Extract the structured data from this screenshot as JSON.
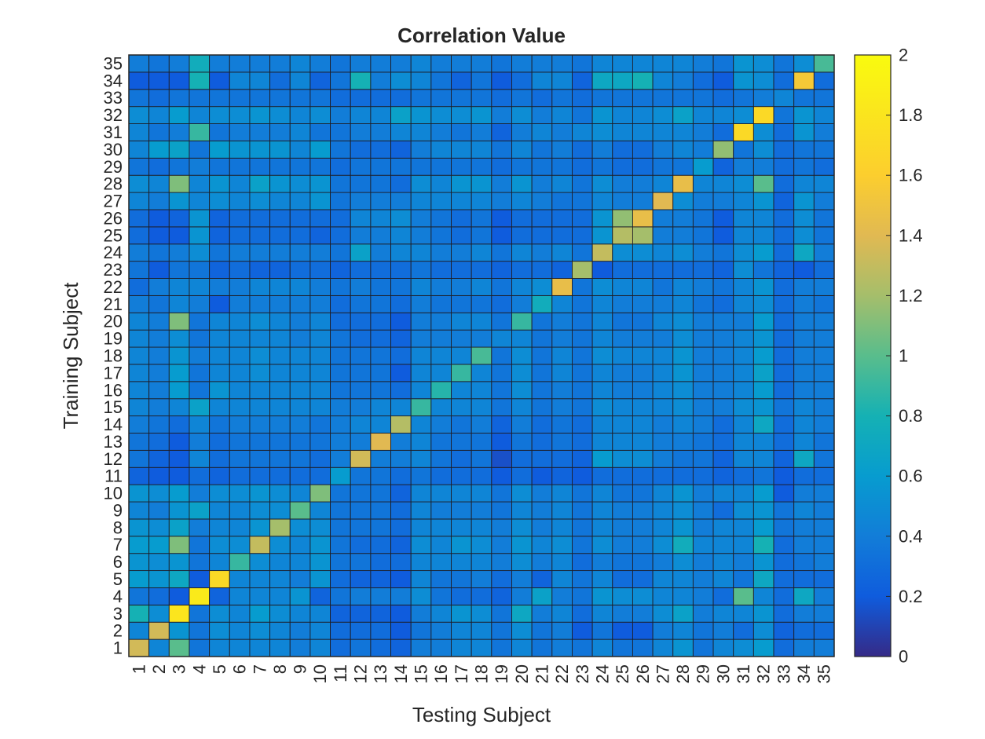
{
  "chart_data": {
    "type": "heatmap",
    "title": "Correlation Value",
    "xlabel": "Testing Subject",
    "ylabel": "Training Subject",
    "x_categories": [
      "1",
      "2",
      "3",
      "4",
      "5",
      "6",
      "7",
      "8",
      "9",
      "10",
      "11",
      "12",
      "13",
      "14",
      "15",
      "16",
      "17",
      "18",
      "19",
      "20",
      "21",
      "22",
      "23",
      "24",
      "25",
      "26",
      "27",
      "28",
      "29",
      "30",
      "31",
      "32",
      "33",
      "34",
      "35"
    ],
    "y_categories": [
      "1",
      "2",
      "3",
      "4",
      "5",
      "6",
      "7",
      "8",
      "9",
      "10",
      "11",
      "12",
      "13",
      "14",
      "15",
      "16",
      "17",
      "18",
      "19",
      "20",
      "21",
      "22",
      "23",
      "24",
      "25",
      "26",
      "27",
      "28",
      "29",
      "30",
      "31",
      "32",
      "33",
      "34",
      "35"
    ],
    "colorbar": {
      "min": 0,
      "max": 2,
      "ticks": [
        "0",
        "0.2",
        "0.4",
        "0.6",
        "0.8",
        "1",
        "1.2",
        "1.4",
        "1.6",
        "1.8",
        "2"
      ],
      "colormap": "parula"
    },
    "diagonal": [
      1.35,
      1.35,
      1.8,
      1.85,
      1.7,
      0.9,
      1.3,
      1.2,
      1.0,
      1.1,
      0.6,
      1.35,
      1.4,
      1.25,
      0.9,
      0.85,
      0.9,
      0.95,
      0.45,
      0.9,
      0.75,
      1.45,
      1.2,
      1.3,
      1.25,
      1.45,
      1.4,
      1.45,
      0.6,
      1.15,
      1.7,
      1.7,
      0.45,
      1.55,
      0.95
    ],
    "values": [
      [
        1.35,
        0.45,
        1.0,
        0.35,
        0.45,
        0.45,
        0.45,
        0.45,
        0.4,
        0.45,
        0.3,
        0.35,
        0.3,
        0.25,
        0.4,
        0.4,
        0.45,
        0.45,
        0.35,
        0.45,
        0.35,
        0.4,
        0.35,
        0.45,
        0.35,
        0.35,
        0.45,
        0.55,
        0.35,
        0.45,
        0.5,
        0.6,
        0.3,
        0.4,
        0.4
      ],
      [
        0.45,
        1.35,
        0.55,
        0.35,
        0.5,
        0.45,
        0.5,
        0.45,
        0.4,
        0.45,
        0.3,
        0.3,
        0.3,
        0.2,
        0.35,
        0.4,
        0.45,
        0.45,
        0.35,
        0.5,
        0.35,
        0.4,
        0.2,
        0.35,
        0.2,
        0.2,
        0.4,
        0.45,
        0.35,
        0.4,
        0.3,
        0.5,
        0.25,
        0.3,
        0.3
      ],
      [
        0.8,
        0.5,
        1.8,
        0.35,
        0.5,
        0.45,
        0.6,
        0.5,
        0.45,
        0.45,
        0.25,
        0.25,
        0.25,
        0.2,
        0.4,
        0.45,
        0.55,
        0.5,
        0.35,
        0.7,
        0.4,
        0.45,
        0.3,
        0.45,
        0.4,
        0.4,
        0.5,
        0.65,
        0.4,
        0.45,
        0.45,
        0.55,
        0.3,
        0.4,
        0.4
      ],
      [
        0.35,
        0.3,
        0.2,
        1.85,
        0.25,
        0.45,
        0.45,
        0.45,
        0.55,
        0.25,
        0.35,
        0.4,
        0.4,
        0.4,
        0.5,
        0.35,
        0.3,
        0.3,
        0.25,
        0.4,
        0.65,
        0.4,
        0.35,
        0.55,
        0.5,
        0.5,
        0.45,
        0.45,
        0.4,
        0.3,
        1.0,
        0.45,
        0.3,
        0.7,
        0.4
      ],
      [
        0.6,
        0.55,
        0.7,
        0.2,
        1.7,
        0.45,
        0.45,
        0.45,
        0.4,
        0.55,
        0.3,
        0.25,
        0.25,
        0.2,
        0.45,
        0.35,
        0.35,
        0.4,
        0.3,
        0.4,
        0.25,
        0.45,
        0.35,
        0.45,
        0.3,
        0.3,
        0.45,
        0.45,
        0.4,
        0.45,
        0.35,
        0.7,
        0.3,
        0.3,
        0.3
      ],
      [
        0.55,
        0.5,
        0.55,
        0.35,
        0.45,
        0.9,
        0.5,
        0.45,
        0.45,
        0.55,
        0.35,
        0.35,
        0.3,
        0.3,
        0.45,
        0.45,
        0.45,
        0.45,
        0.4,
        0.5,
        0.4,
        0.45,
        0.3,
        0.4,
        0.35,
        0.35,
        0.4,
        0.5,
        0.4,
        0.45,
        0.4,
        0.55,
        0.3,
        0.35,
        0.4
      ],
      [
        0.6,
        0.6,
        1.1,
        0.35,
        0.5,
        0.5,
        1.3,
        0.5,
        0.45,
        0.55,
        0.35,
        0.3,
        0.3,
        0.25,
        0.5,
        0.45,
        0.55,
        0.5,
        0.4,
        0.55,
        0.45,
        0.5,
        0.35,
        0.5,
        0.4,
        0.4,
        0.5,
        0.75,
        0.45,
        0.45,
        0.45,
        0.8,
        0.3,
        0.4,
        0.4
      ],
      [
        0.55,
        0.5,
        0.65,
        0.4,
        0.45,
        0.45,
        0.55,
        1.2,
        0.5,
        0.5,
        0.35,
        0.35,
        0.35,
        0.3,
        0.45,
        0.45,
        0.45,
        0.45,
        0.4,
        0.5,
        0.4,
        0.45,
        0.35,
        0.45,
        0.4,
        0.4,
        0.45,
        0.55,
        0.4,
        0.45,
        0.45,
        0.6,
        0.35,
        0.4,
        0.4
      ],
      [
        0.45,
        0.4,
        0.55,
        0.65,
        0.45,
        0.45,
        0.5,
        0.5,
        1.0,
        0.45,
        0.35,
        0.35,
        0.35,
        0.3,
        0.45,
        0.4,
        0.4,
        0.4,
        0.35,
        0.45,
        0.4,
        0.45,
        0.35,
        0.45,
        0.4,
        0.4,
        0.45,
        0.5,
        0.4,
        0.3,
        0.5,
        0.55,
        0.35,
        0.45,
        0.4
      ],
      [
        0.55,
        0.5,
        0.6,
        0.4,
        0.5,
        0.5,
        0.55,
        0.5,
        0.45,
        1.1,
        0.35,
        0.35,
        0.35,
        0.25,
        0.45,
        0.45,
        0.45,
        0.45,
        0.35,
        0.5,
        0.4,
        0.45,
        0.35,
        0.45,
        0.35,
        0.35,
        0.45,
        0.55,
        0.4,
        0.45,
        0.45,
        0.6,
        0.2,
        0.4,
        0.4
      ],
      [
        0.25,
        0.2,
        0.2,
        0.3,
        0.25,
        0.3,
        0.3,
        0.3,
        0.3,
        0.3,
        0.6,
        0.35,
        0.35,
        0.3,
        0.35,
        0.3,
        0.3,
        0.3,
        0.2,
        0.3,
        0.2,
        0.25,
        0.2,
        0.3,
        0.3,
        0.3,
        0.3,
        0.3,
        0.3,
        0.25,
        0.3,
        0.35,
        0.2,
        0.3,
        0.3
      ],
      [
        0.35,
        0.25,
        0.2,
        0.45,
        0.3,
        0.35,
        0.35,
        0.35,
        0.35,
        0.3,
        0.4,
        1.35,
        0.4,
        0.4,
        0.45,
        0.35,
        0.3,
        0.35,
        0.15,
        0.3,
        0.3,
        0.3,
        0.25,
        0.6,
        0.5,
        0.5,
        0.4,
        0.35,
        0.35,
        0.25,
        0.45,
        0.45,
        0.25,
        0.7,
        0.35
      ],
      [
        0.35,
        0.3,
        0.2,
        0.4,
        0.3,
        0.35,
        0.35,
        0.35,
        0.35,
        0.35,
        0.4,
        0.4,
        1.4,
        0.4,
        0.45,
        0.35,
        0.35,
        0.35,
        0.2,
        0.35,
        0.3,
        0.35,
        0.3,
        0.45,
        0.45,
        0.45,
        0.4,
        0.4,
        0.35,
        0.3,
        0.45,
        0.45,
        0.3,
        0.45,
        0.35
      ],
      [
        0.4,
        0.35,
        0.3,
        0.45,
        0.35,
        0.4,
        0.4,
        0.4,
        0.4,
        0.35,
        0.4,
        0.45,
        0.45,
        1.25,
        0.45,
        0.4,
        0.35,
        0.4,
        0.25,
        0.4,
        0.3,
        0.35,
        0.3,
        0.45,
        0.45,
        0.45,
        0.4,
        0.45,
        0.4,
        0.3,
        0.45,
        0.7,
        0.3,
        0.45,
        0.4
      ],
      [
        0.45,
        0.4,
        0.45,
        0.65,
        0.45,
        0.45,
        0.45,
        0.45,
        0.45,
        0.45,
        0.4,
        0.4,
        0.45,
        0.45,
        0.9,
        0.45,
        0.45,
        0.45,
        0.35,
        0.45,
        0.35,
        0.4,
        0.35,
        0.5,
        0.45,
        0.45,
        0.45,
        0.5,
        0.4,
        0.4,
        0.5,
        0.55,
        0.35,
        0.45,
        0.4
      ],
      [
        0.45,
        0.4,
        0.6,
        0.35,
        0.55,
        0.45,
        0.45,
        0.45,
        0.45,
        0.45,
        0.35,
        0.35,
        0.35,
        0.3,
        0.45,
        0.85,
        0.45,
        0.45,
        0.35,
        0.5,
        0.35,
        0.4,
        0.35,
        0.45,
        0.4,
        0.4,
        0.45,
        0.5,
        0.4,
        0.4,
        0.45,
        0.6,
        0.3,
        0.4,
        0.4
      ],
      [
        0.45,
        0.4,
        0.6,
        0.35,
        0.45,
        0.45,
        0.5,
        0.45,
        0.45,
        0.45,
        0.35,
        0.35,
        0.35,
        0.2,
        0.45,
        0.45,
        0.9,
        0.45,
        0.35,
        0.5,
        0.35,
        0.45,
        0.35,
        0.45,
        0.4,
        0.4,
        0.45,
        0.55,
        0.4,
        0.4,
        0.45,
        0.65,
        0.3,
        0.4,
        0.4
      ],
      [
        0.45,
        0.4,
        0.55,
        0.4,
        0.45,
        0.45,
        0.5,
        0.45,
        0.45,
        0.45,
        0.35,
        0.35,
        0.35,
        0.3,
        0.45,
        0.45,
        0.45,
        0.95,
        0.35,
        0.5,
        0.35,
        0.45,
        0.35,
        0.5,
        0.45,
        0.45,
        0.45,
        0.55,
        0.4,
        0.4,
        0.45,
        0.6,
        0.3,
        0.4,
        0.4
      ],
      [
        0.45,
        0.4,
        0.5,
        0.35,
        0.45,
        0.45,
        0.45,
        0.45,
        0.4,
        0.45,
        0.35,
        0.3,
        0.3,
        0.25,
        0.4,
        0.4,
        0.4,
        0.4,
        0.45,
        0.45,
        0.35,
        0.4,
        0.35,
        0.45,
        0.4,
        0.4,
        0.4,
        0.5,
        0.4,
        0.4,
        0.45,
        0.55,
        0.3,
        0.4,
        0.4
      ],
      [
        0.45,
        0.4,
        1.1,
        0.35,
        0.45,
        0.45,
        0.5,
        0.45,
        0.4,
        0.45,
        0.3,
        0.3,
        0.3,
        0.2,
        0.4,
        0.4,
        0.45,
        0.45,
        0.35,
        0.9,
        0.35,
        0.4,
        0.35,
        0.45,
        0.35,
        0.35,
        0.45,
        0.5,
        0.4,
        0.4,
        0.4,
        0.6,
        0.3,
        0.4,
        0.4
      ],
      [
        0.4,
        0.35,
        0.45,
        0.4,
        0.2,
        0.4,
        0.4,
        0.4,
        0.4,
        0.4,
        0.3,
        0.35,
        0.35,
        0.3,
        0.4,
        0.35,
        0.35,
        0.35,
        0.3,
        0.4,
        0.75,
        0.45,
        0.35,
        0.45,
        0.4,
        0.4,
        0.4,
        0.45,
        0.35,
        0.3,
        0.45,
        0.5,
        0.3,
        0.4,
        0.35
      ],
      [
        0.3,
        0.4,
        0.45,
        0.45,
        0.4,
        0.4,
        0.45,
        0.45,
        0.45,
        0.4,
        0.35,
        0.4,
        0.35,
        0.35,
        0.45,
        0.4,
        0.4,
        0.45,
        0.35,
        0.45,
        0.5,
        1.45,
        0.35,
        0.5,
        0.45,
        0.45,
        0.35,
        0.45,
        0.4,
        0.35,
        0.45,
        0.55,
        0.3,
        0.4,
        0.4
      ],
      [
        0.35,
        0.2,
        0.35,
        0.35,
        0.25,
        0.3,
        0.25,
        0.25,
        0.3,
        0.3,
        0.25,
        0.3,
        0.3,
        0.3,
        0.35,
        0.3,
        0.3,
        0.3,
        0.25,
        0.3,
        0.3,
        0.25,
        1.2,
        0.2,
        0.3,
        0.3,
        0.3,
        0.3,
        0.3,
        0.25,
        0.5,
        0.35,
        0.25,
        0.2,
        0.3
      ],
      [
        0.4,
        0.35,
        0.4,
        0.5,
        0.35,
        0.4,
        0.4,
        0.4,
        0.4,
        0.4,
        0.35,
        0.65,
        0.4,
        0.45,
        0.45,
        0.4,
        0.4,
        0.45,
        0.35,
        0.45,
        0.4,
        0.45,
        0.35,
        1.3,
        0.5,
        0.5,
        0.45,
        0.5,
        0.4,
        0.35,
        0.5,
        0.6,
        0.3,
        0.7,
        0.4
      ],
      [
        0.3,
        0.2,
        0.2,
        0.55,
        0.25,
        0.3,
        0.3,
        0.3,
        0.3,
        0.25,
        0.3,
        0.4,
        0.4,
        0.45,
        0.4,
        0.35,
        0.3,
        0.35,
        0.2,
        0.3,
        0.3,
        0.3,
        0.3,
        0.55,
        1.25,
        1.2,
        0.4,
        0.4,
        0.35,
        0.2,
        0.45,
        0.45,
        0.3,
        0.5,
        0.35
      ],
      [
        0.3,
        0.2,
        0.25,
        0.55,
        0.25,
        0.3,
        0.3,
        0.3,
        0.3,
        0.3,
        0.3,
        0.45,
        0.45,
        0.5,
        0.4,
        0.35,
        0.3,
        0.35,
        0.2,
        0.3,
        0.3,
        0.3,
        0.3,
        0.55,
        1.15,
        1.45,
        0.4,
        0.4,
        0.35,
        0.2,
        0.45,
        0.45,
        0.3,
        0.5,
        0.35
      ],
      [
        0.45,
        0.4,
        0.55,
        0.45,
        0.5,
        0.45,
        0.5,
        0.45,
        0.45,
        0.55,
        0.35,
        0.4,
        0.4,
        0.4,
        0.45,
        0.45,
        0.45,
        0.45,
        0.4,
        0.45,
        0.4,
        0.35,
        0.35,
        0.45,
        0.4,
        0.4,
        1.4,
        0.5,
        0.4,
        0.4,
        0.45,
        0.55,
        0.25,
        0.55,
        0.4
      ],
      [
        0.5,
        0.45,
        1.1,
        0.45,
        0.55,
        0.45,
        0.65,
        0.55,
        0.5,
        0.55,
        0.35,
        0.35,
        0.35,
        0.3,
        0.5,
        0.45,
        0.55,
        0.55,
        0.4,
        0.55,
        0.4,
        0.45,
        0.35,
        0.5,
        0.4,
        0.4,
        0.45,
        1.45,
        0.45,
        0.45,
        0.5,
        1.0,
        0.3,
        0.45,
        0.45
      ],
      [
        0.35,
        0.3,
        0.35,
        0.4,
        0.35,
        0.35,
        0.35,
        0.35,
        0.35,
        0.35,
        0.3,
        0.35,
        0.35,
        0.35,
        0.35,
        0.35,
        0.35,
        0.35,
        0.3,
        0.35,
        0.35,
        0.35,
        0.3,
        0.35,
        0.3,
        0.3,
        0.35,
        0.35,
        0.6,
        0.25,
        0.4,
        0.4,
        0.3,
        0.35,
        0.3
      ],
      [
        0.45,
        0.6,
        0.65,
        0.35,
        0.6,
        0.55,
        0.55,
        0.55,
        0.45,
        0.6,
        0.35,
        0.3,
        0.3,
        0.25,
        0.4,
        0.45,
        0.45,
        0.45,
        0.35,
        0.45,
        0.35,
        0.4,
        0.3,
        0.4,
        0.3,
        0.3,
        0.4,
        0.45,
        0.4,
        1.15,
        0.35,
        0.5,
        0.3,
        0.35,
        0.35
      ],
      [
        0.45,
        0.35,
        0.4,
        0.9,
        0.35,
        0.4,
        0.4,
        0.4,
        0.45,
        0.35,
        0.35,
        0.4,
        0.4,
        0.45,
        0.45,
        0.4,
        0.35,
        0.4,
        0.25,
        0.4,
        0.45,
        0.4,
        0.45,
        0.5,
        0.45,
        0.45,
        0.45,
        0.45,
        0.4,
        0.3,
        1.7,
        0.5,
        0.3,
        0.55,
        0.4
      ],
      [
        0.5,
        0.45,
        0.6,
        0.45,
        0.5,
        0.5,
        0.55,
        0.5,
        0.45,
        0.5,
        0.4,
        0.45,
        0.45,
        0.65,
        0.55,
        0.5,
        0.5,
        0.55,
        0.4,
        0.5,
        0.4,
        0.45,
        0.35,
        0.55,
        0.45,
        0.45,
        0.5,
        0.65,
        0.45,
        0.45,
        0.5,
        1.7,
        0.35,
        0.55,
        0.45
      ],
      [
        0.35,
        0.3,
        0.35,
        0.35,
        0.35,
        0.35,
        0.35,
        0.35,
        0.35,
        0.35,
        0.3,
        0.3,
        0.3,
        0.3,
        0.35,
        0.35,
        0.35,
        0.35,
        0.3,
        0.35,
        0.3,
        0.35,
        0.3,
        0.35,
        0.35,
        0.35,
        0.35,
        0.35,
        0.35,
        0.3,
        0.35,
        0.4,
        0.45,
        0.35,
        0.35
      ],
      [
        0.2,
        0.2,
        0.2,
        0.8,
        0.2,
        0.45,
        0.45,
        0.3,
        0.45,
        0.25,
        0.35,
        0.8,
        0.4,
        0.5,
        0.45,
        0.35,
        0.25,
        0.35,
        0.2,
        0.3,
        0.45,
        0.45,
        0.25,
        0.7,
        0.7,
        0.8,
        0.45,
        0.4,
        0.3,
        0.2,
        0.55,
        0.5,
        0.3,
        1.55,
        0.3
      ],
      [
        0.4,
        0.35,
        0.4,
        0.75,
        0.4,
        0.4,
        0.4,
        0.4,
        0.45,
        0.4,
        0.35,
        0.4,
        0.4,
        0.4,
        0.45,
        0.4,
        0.4,
        0.4,
        0.35,
        0.4,
        0.4,
        0.4,
        0.35,
        0.45,
        0.45,
        0.45,
        0.45,
        0.45,
        0.4,
        0.35,
        0.55,
        0.5,
        0.35,
        0.5,
        0.95
      ]
    ]
  }
}
